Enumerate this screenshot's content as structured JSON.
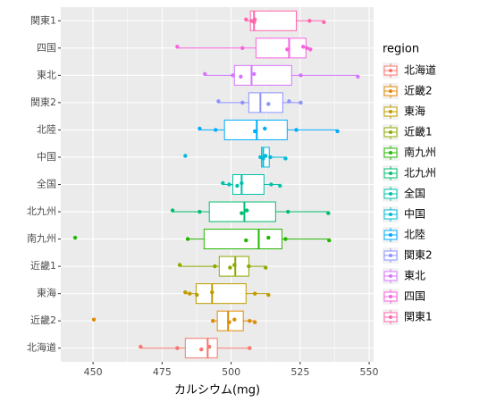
{
  "chart_data": {
    "type": "boxplot",
    "x_label": "カルシウム(mg)",
    "legend_title": "region",
    "xlim": [
      438.3,
      551.6
    ],
    "xticks": [
      450,
      475,
      500,
      525,
      550
    ],
    "grid": true,
    "legend_position": "right",
    "series": [
      {
        "name": "北海道",
        "color": "#F8766D",
        "min": 467.2,
        "q1": 483.4,
        "median": 491.5,
        "q3": 495.0,
        "max": 507.0,
        "points": [
          467.2,
          480.5,
          489.2,
          492.1,
          506.7
        ]
      },
      {
        "name": "近畿2",
        "color": "#E18A00",
        "min": 493.4,
        "q1": 495.0,
        "median": 498.9,
        "q3": 504.4,
        "max": 508.6,
        "points": [
          450.3,
          493.4,
          499.3,
          501.2,
          506.7,
          508.6
        ]
      },
      {
        "name": "東海",
        "color": "#BE9C00",
        "min": 483.4,
        "q1": 487.3,
        "median": 493.1,
        "q3": 505.4,
        "max": 513.5,
        "points": [
          483.4,
          485.0,
          487.6,
          493.1,
          508.6,
          513.5
        ]
      },
      {
        "name": "近畿1",
        "color": "#8CAB00",
        "min": 481.4,
        "q1": 495.7,
        "median": 501.5,
        "q3": 506.4,
        "max": 512.5,
        "points": [
          481.4,
          494.1,
          499.6,
          501.2,
          506.4,
          512.5
        ]
      },
      {
        "name": "南九州",
        "color": "#24B700",
        "min": 484.3,
        "q1": 490.2,
        "median": 510.0,
        "q3": 518.4,
        "max": 535.5,
        "points": [
          443.5,
          484.3,
          505.4,
          513.5,
          519.7,
          535.5
        ]
      },
      {
        "name": "北九州",
        "color": "#00BE70",
        "min": 478.8,
        "q1": 492.1,
        "median": 504.8,
        "q3": 516.1,
        "max": 535.2,
        "points": [
          478.8,
          488.6,
          503.8,
          505.7,
          520.6,
          535.2
        ]
      },
      {
        "name": "全国",
        "color": "#00C1AB",
        "min": 497.0,
        "q1": 500.6,
        "median": 503.8,
        "q3": 511.9,
        "max": 517.7,
        "points": [
          497.0,
          499.3,
          502.2,
          503.8,
          514.5,
          517.7
        ]
      },
      {
        "name": "中国",
        "color": "#00BBDA",
        "min": 510.6,
        "q1": 511.0,
        "median": 511.6,
        "q3": 513.8,
        "max": 519.7,
        "points": [
          483.4,
          510.6,
          511.6,
          512.5,
          514.2,
          519.7
        ]
      },
      {
        "name": "北陸",
        "color": "#00ACFC",
        "min": 488.6,
        "q1": 497.6,
        "median": 509.3,
        "q3": 520.3,
        "max": 538.5,
        "points": [
          488.6,
          494.4,
          508.6,
          512.2,
          523.6,
          538.5
        ]
      },
      {
        "name": "関東2",
        "color": "#8B93FF",
        "min": 495.4,
        "q1": 506.4,
        "median": 510.6,
        "q3": 518.7,
        "max": 525.2,
        "points": [
          495.4,
          504.1,
          513.5,
          521.0,
          525.2
        ]
      },
      {
        "name": "東北",
        "color": "#D575FE",
        "min": 490.5,
        "q1": 501.2,
        "median": 507.4,
        "q3": 521.9,
        "max": 545.9,
        "points": [
          490.5,
          500.6,
          503.5,
          508.3,
          525.2,
          545.9
        ]
      },
      {
        "name": "四国",
        "color": "#F962DD",
        "min": 480.5,
        "q1": 509.0,
        "median": 521.0,
        "q3": 527.1,
        "max": 528.7,
        "points": [
          480.5,
          504.1,
          520.3,
          526.1,
          527.4,
          528.7
        ]
      },
      {
        "name": "関東1",
        "color": "#FF65AC",
        "min": 505.4,
        "q1": 507.0,
        "median": 508.3,
        "q3": 523.6,
        "max": 533.6,
        "points": [
          505.4,
          507.4,
          508.3,
          508.6,
          528.4,
          533.6
        ]
      }
    ]
  }
}
